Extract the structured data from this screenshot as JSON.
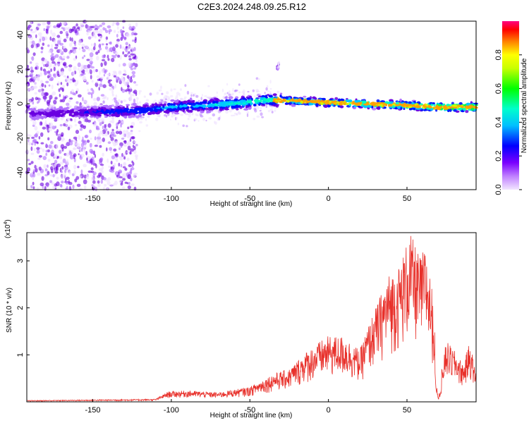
{
  "title": "C2E3.2024.248.09.25.R12",
  "colors": {
    "snr_line": "#e8302a",
    "axis": "#000000"
  },
  "chart_data": [
    {
      "type": "heatmap",
      "xlabel": "Height of straight line (km)",
      "ylabel": "Frequency (Hz)",
      "xlim": [
        -192,
        94
      ],
      "ylim": [
        -50,
        48
      ],
      "xticks": [
        -150,
        -100,
        -50,
        0,
        50
      ],
      "yticks": [
        -40,
        -20,
        0,
        20,
        40
      ],
      "xtick_labels": [
        "-150",
        "-100",
        "-50",
        "0",
        "50"
      ],
      "ytick_labels": [
        "-40",
        "-20",
        "0",
        "20",
        "40"
      ],
      "colorbar": {
        "label": "Normalized spectral amplitude",
        "range": [
          0,
          1
        ],
        "ticks": [
          0.0,
          0.2,
          0.4,
          0.6,
          0.8
        ],
        "tick_labels": [
          "0.0",
          "0.2",
          "0.4",
          "0.6",
          "0.8"
        ]
      },
      "ridge": [
        {
          "x": -190,
          "f": -6
        },
        {
          "x": -150,
          "f": -5
        },
        {
          "x": -120,
          "f": -4
        },
        {
          "x": -100,
          "f": -2
        },
        {
          "x": -80,
          "f": -1
        },
        {
          "x": -60,
          "f": 0
        },
        {
          "x": -40,
          "f": 2
        },
        {
          "x": -30,
          "f": 2
        },
        {
          "x": -10,
          "f": 1
        },
        {
          "x": 20,
          "f": 0
        },
        {
          "x": 50,
          "f": -1
        },
        {
          "x": 70,
          "f": -2
        },
        {
          "x": 94,
          "f": -2
        }
      ],
      "annotation_blob": {
        "x": -32,
        "f": 22
      }
    },
    {
      "type": "line",
      "xlabel": "Height of straight line (km)",
      "ylabel": "SNR (10 * v/v)",
      "y_multiplier": "(x10",
      "y_multiplier_exp": "4",
      "xlim": [
        -192,
        94
      ],
      "ylim": [
        0,
        3.6
      ],
      "xticks": [
        -150,
        -100,
        -50,
        0,
        50
      ],
      "yticks": [
        1,
        2,
        3
      ],
      "xtick_labels": [
        "-150",
        "-100",
        "-50",
        "0",
        "50"
      ],
      "ytick_labels": [
        "1",
        "2",
        "3"
      ],
      "envelope": [
        {
          "x": -192,
          "y": 0.03
        },
        {
          "x": -110,
          "y": 0.06
        },
        {
          "x": -102,
          "y": 0.22
        },
        {
          "x": -90,
          "y": 0.24
        },
        {
          "x": -70,
          "y": 0.2
        },
        {
          "x": -50,
          "y": 0.32
        },
        {
          "x": -35,
          "y": 0.6
        },
        {
          "x": -25,
          "y": 0.7
        },
        {
          "x": -15,
          "y": 1.05
        },
        {
          "x": -5,
          "y": 1.3
        },
        {
          "x": 0,
          "y": 1.4
        },
        {
          "x": 10,
          "y": 1.4
        },
        {
          "x": 20,
          "y": 1.1
        },
        {
          "x": 25,
          "y": 1.6
        },
        {
          "x": 30,
          "y": 2.0
        },
        {
          "x": 38,
          "y": 2.7
        },
        {
          "x": 45,
          "y": 2.9
        },
        {
          "x": 52,
          "y": 3.6
        },
        {
          "x": 58,
          "y": 3.1
        },
        {
          "x": 62,
          "y": 3.3
        },
        {
          "x": 66,
          "y": 2.4
        },
        {
          "x": 70,
          "y": 0.25
        },
        {
          "x": 75,
          "y": 1.3
        },
        {
          "x": 80,
          "y": 1.1
        },
        {
          "x": 86,
          "y": 0.8
        },
        {
          "x": 90,
          "y": 1.3
        },
        {
          "x": 94,
          "y": 0.6
        }
      ]
    }
  ]
}
